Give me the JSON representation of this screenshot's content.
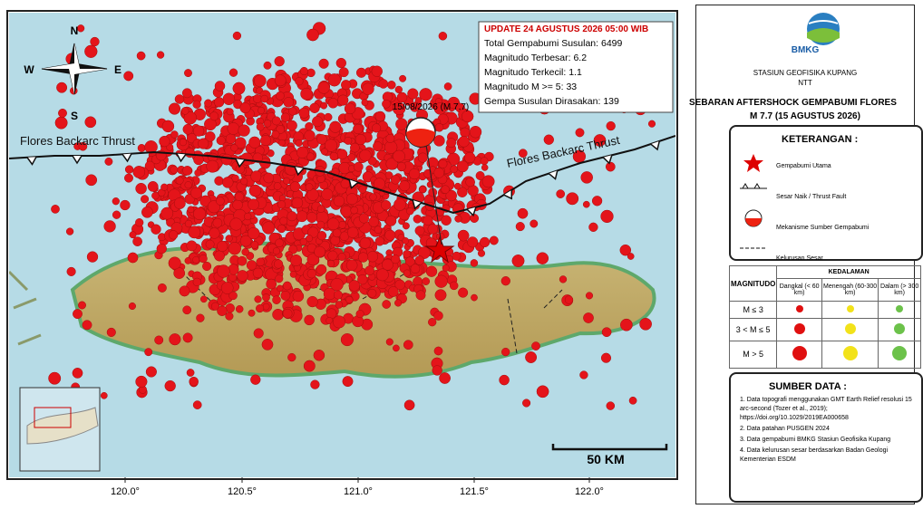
{
  "map": {
    "update": "UPDATE 24 AGUSTUS 2026 05:00 WIB",
    "stats": [
      "Total Gempabumi Susulan: 6499",
      "Magnitudo Terbesar: 6.2",
      "Magnitudo Terkecil: 1.1",
      "Magnitudo M >= 5: 33",
      "Gempa Susulan Dirasakan: 139"
    ],
    "event_label": "15/08/2026 (M 7.7)",
    "fault_labels": [
      "Flores Backarc Thrust",
      "Flores Backarc Thrust"
    ],
    "compass": {
      "n": "N",
      "e": "E",
      "s": "S",
      "w": "W"
    },
    "scale": "50 KM",
    "lon_labels": [
      "120.0°",
      "120.5°",
      "121.0°",
      "121.5°",
      "122.0°"
    ]
  },
  "panel": {
    "agency": "BMKG",
    "station": "STASIUN GEOFISIKA KUPANG",
    "province": "NTT",
    "title": "SEBARAN AFTERSHOCK GEMPABUMI FLORES",
    "subtitle": "M 7.7 (15 AGUSTUS 2026)",
    "legend_title": "KETERANGAN :",
    "legend_items": [
      "Gempabumi Utama",
      "Sesar Naik / Thrust Fault",
      "Mekanisme Sumber Gempabumi",
      "Kelurusan Sesar"
    ],
    "table": {
      "mag_header": "MAGNITUDO",
      "depth_header": "KEDALAMAN",
      "depth_cols": [
        "Dangkal (< 60 km)",
        "Menengah (60-300 km)",
        "Dalam (> 300 km)"
      ],
      "rows": [
        "M ≤ 3",
        "3 < M ≤ 5",
        "M > 5"
      ]
    },
    "sources_title": "SUMBER DATA :",
    "sources": [
      "1. Data topografi menggunakan GMT Earth Relief resolusi 15 arc-second (Tozer et al., 2019); https://doi.org/10.1029/2019EA000658",
      "2. Data patahan PUSGEN 2024",
      "3. Data gempabumi BMKG Stasiun Geofisika Kupang",
      "4. Data kelurusan sesar berdasarkan Badan Geologi Kementerian ESDM"
    ]
  }
}
